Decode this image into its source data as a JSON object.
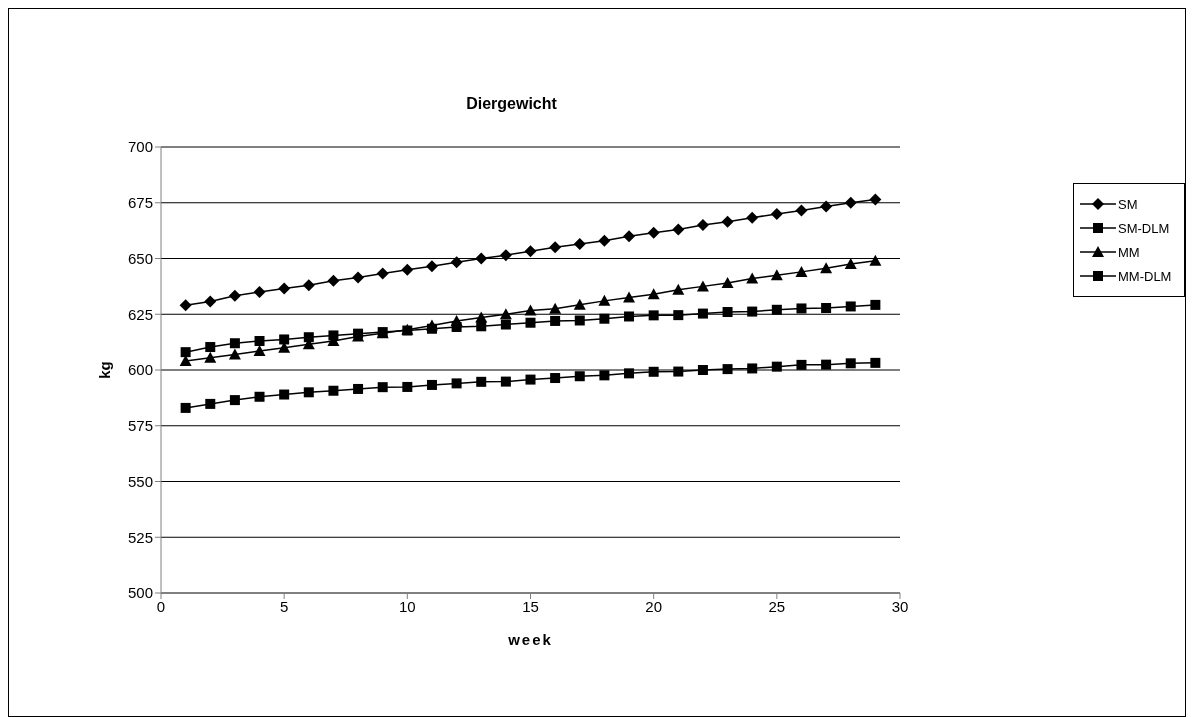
{
  "chart_data": {
    "type": "line",
    "title": "Diergewicht",
    "xlabel": "week",
    "ylabel": "kg",
    "x": [
      1,
      2,
      3,
      4,
      5,
      6,
      7,
      8,
      9,
      10,
      11,
      12,
      13,
      14,
      15,
      16,
      17,
      18,
      19,
      20,
      21,
      22,
      23,
      24,
      25,
      26,
      27,
      28,
      29
    ],
    "xlim": [
      0,
      30
    ],
    "xticks": [
      0,
      5,
      10,
      15,
      20,
      25,
      30
    ],
    "ylim": [
      500,
      700
    ],
    "yticks": [
      500,
      525,
      550,
      575,
      600,
      625,
      650,
      675,
      700
    ],
    "grid": "y",
    "legend": "right",
    "series": [
      {
        "name": "SM",
        "color": "#000000",
        "marker": "diamond",
        "values": [
          629,
          630.7,
          633.3,
          635,
          636.5,
          638,
          640,
          641.5,
          643.3,
          645,
          646.5,
          648.3,
          650,
          651.5,
          653.3,
          655,
          656.5,
          658,
          660,
          661.5,
          663,
          665,
          666.5,
          668.3,
          670,
          671.5,
          673.3,
          675,
          676.5
        ]
      },
      {
        "name": "SM-DLM",
        "color": "#000000",
        "marker": "square",
        "values": [
          608,
          610.3,
          612,
          613,
          613.7,
          614.7,
          615.5,
          616.3,
          617,
          617.7,
          618.5,
          619.3,
          619.6,
          620.4,
          621.2,
          622,
          622.2,
          623,
          624,
          624.5,
          624.6,
          625.3,
          626,
          626.2,
          627,
          627.6,
          627.8,
          628.5,
          629.2
        ]
      },
      {
        "name": "MM",
        "color": "#000000",
        "marker": "triangle",
        "values": [
          604,
          605.5,
          607,
          608.5,
          610,
          611.5,
          613,
          615,
          616.5,
          618,
          620,
          622,
          623.5,
          625,
          626.7,
          627.5,
          629.3,
          631,
          632.5,
          634,
          636,
          637.5,
          639,
          641,
          642.5,
          644,
          645.6,
          647.5,
          649
        ]
      },
      {
        "name": "MM-DLM",
        "color": "#000000",
        "marker": "square",
        "values": [
          583,
          584.8,
          586.5,
          588,
          589,
          590,
          590.7,
          591.5,
          592.3,
          592.4,
          593.3,
          594,
          594.7,
          594.8,
          595.7,
          596.4,
          597.2,
          597.6,
          598.5,
          599.2,
          599.3,
          600,
          600.4,
          600.7,
          601.5,
          602.3,
          602.4,
          603,
          603.2
        ]
      }
    ]
  }
}
